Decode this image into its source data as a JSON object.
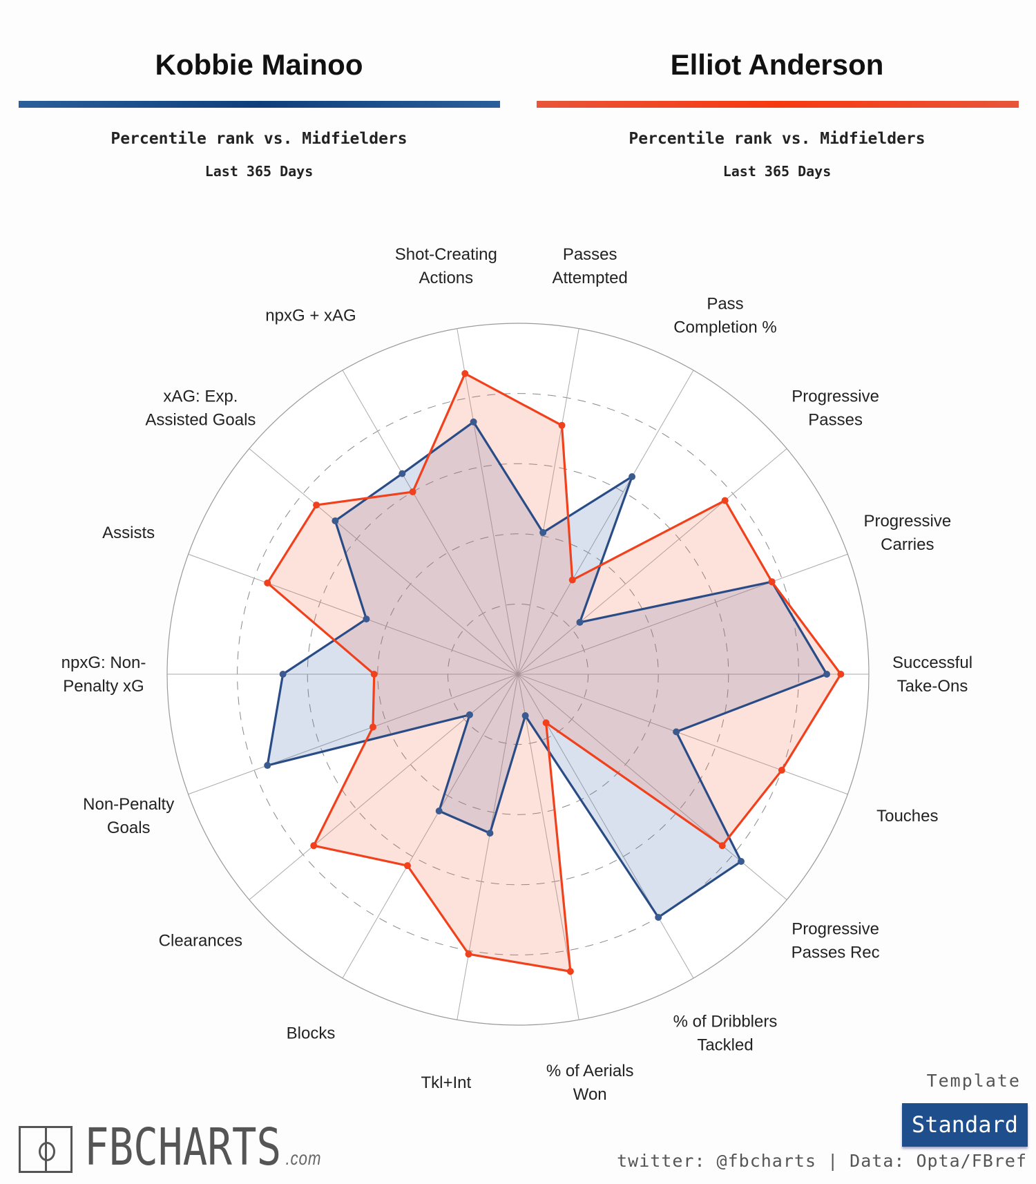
{
  "players": [
    {
      "name": "Kobbie Mainoo",
      "color": "#1f5391",
      "subtitle": "Percentile rank vs. Midfielders",
      "period": "Last 365 Days"
    },
    {
      "name": "Elliot Anderson",
      "color": "#f0401c",
      "subtitle": "Percentile rank vs. Midfielders",
      "period": "Last 365 Days"
    }
  ],
  "chart_data": {
    "type": "radar",
    "range": [
      0,
      100
    ],
    "gridlines": [
      20,
      40,
      60,
      80,
      100
    ],
    "categories": [
      "Shot-Creating Actions",
      "Passes Attempted",
      "Pass Completion %",
      "Progressive Passes",
      "Progressive Carries",
      "Successful Take-Ons",
      "Touches",
      "Progressive Passes Rec",
      "% of Dribblers Tackled",
      "% of Aerials Won",
      "Tkl+Int",
      "Blocks",
      "Clearances",
      "Non-Penalty Goals",
      "npxG: Non-Penalty xG",
      "Assists",
      "xAG: Exp. Assisted Goals",
      "npxG + xAG"
    ],
    "category_lines": [
      [
        "Shot-Creating",
        "Actions"
      ],
      [
        "Passes",
        "Attempted"
      ],
      [
        "Pass",
        "Completion %"
      ],
      [
        "Progressive",
        "Passes"
      ],
      [
        "Progressive",
        "Carries"
      ],
      [
        "Successful",
        "Take-Ons"
      ],
      [
        "Touches"
      ],
      [
        "Progressive",
        "Passes Rec"
      ],
      [
        "% of Dribblers",
        "Tackled"
      ],
      [
        "% of Aerials",
        "Won"
      ],
      [
        "Tkl+Int"
      ],
      [
        "Blocks"
      ],
      [
        "Clearances"
      ],
      [
        "Non-Penalty",
        "Goals"
      ],
      [
        "npxG: Non-",
        "Penalty xG"
      ],
      [
        "Assists"
      ],
      [
        "xAG: Exp.",
        "Assisted Goals"
      ],
      [
        "npxG + xAG"
      ]
    ],
    "series": [
      {
        "name": "Kobbie Mainoo",
        "color": "#1f5391",
        "values": [
          73,
          41,
          65,
          23,
          77,
          88,
          48,
          83,
          80,
          12,
          46,
          45,
          18,
          76,
          67,
          46,
          68,
          66
        ]
      },
      {
        "name": "Elliot Anderson",
        "color": "#f0401c",
        "values": [
          87,
          72,
          31,
          77,
          77,
          92,
          80,
          76,
          16,
          86,
          81,
          63,
          76,
          44,
          41,
          76,
          75,
          60
        ]
      }
    ]
  },
  "footer": {
    "brand": "FBCHARTS",
    "brand_suffix": ".com",
    "template_label": "Template",
    "template_value": "Standard",
    "credit": "twitter: @fbcharts | Data: Opta/FBref"
  }
}
